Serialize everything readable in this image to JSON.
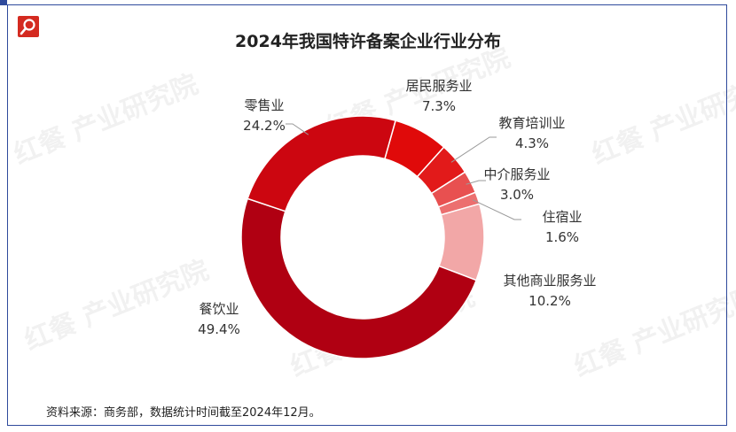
{
  "title": "2024年我国特许备案企业行业分布",
  "source": "资料来源：商务部，数据统计时间截至2024年12月。",
  "watermark": "红餐 产业研究院",
  "chart_data": {
    "type": "pie",
    "donut": true,
    "title": "2024年我国特许备案企业行业分布",
    "unit": "%",
    "slices": [
      {
        "label": "居民服务业",
        "value": 7.3,
        "display": "7.3%",
        "color": "#e00a0a"
      },
      {
        "label": "教育培训业",
        "value": 4.3,
        "display": "4.3%",
        "color": "#e21a1a"
      },
      {
        "label": "中介服务业",
        "value": 3.0,
        "display": "3.0%",
        "color": "#e85050"
      },
      {
        "label": "住宿业",
        "value": 1.6,
        "display": "1.6%",
        "color": "#ec6f6f"
      },
      {
        "label": "其他商业服务业",
        "value": 10.2,
        "display": "10.2%",
        "color": "#f2a7a7"
      },
      {
        "label": "餐饮业",
        "value": 49.4,
        "display": "49.4%",
        "color": "#b00012"
      },
      {
        "label": "零售业",
        "value": 24.2,
        "display": "24.2%",
        "color": "#cc0610"
      }
    ]
  }
}
